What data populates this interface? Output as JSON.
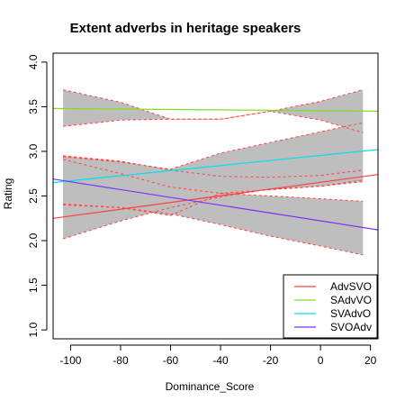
{
  "chart_data": {
    "type": "line",
    "title": "Extent adverbs in heritage speakers",
    "xlabel": "Dominance_Score",
    "ylabel": "Rating",
    "xlim": [
      -107,
      23
    ],
    "ylim": [
      0.9,
      4.1
    ],
    "x_ticks": [
      -100,
      -80,
      -60,
      -40,
      -20,
      0,
      20
    ],
    "y_ticks": [
      1.0,
      1.5,
      2.0,
      2.5,
      3.0,
      3.5,
      4.0
    ],
    "grid": false,
    "legend_position": "bottom-right",
    "series": [
      {
        "name": "AdvSVO",
        "color": "#FF4040",
        "x": [
          -107,
          23
        ],
        "y": [
          2.25,
          2.74
        ]
      },
      {
        "name": "SAdvVO",
        "color": "#80E020",
        "x": [
          -107,
          23
        ],
        "y": [
          3.48,
          3.45
        ]
      },
      {
        "name": "SVAdvO",
        "color": "#00E0E8",
        "x": [
          -107,
          23
        ],
        "y": [
          2.65,
          3.02
        ]
      },
      {
        "name": "SVOAdv",
        "color": "#7733FF",
        "x": [
          -107,
          23
        ],
        "y": [
          2.69,
          2.12
        ]
      }
    ],
    "confidence_bands": [
      {
        "x": [
          -103,
          -80,
          -60,
          -40,
          -20,
          0,
          17
        ],
        "upper": [
          3.69,
          3.55,
          3.36,
          3.36,
          3.45,
          3.56,
          3.69
        ],
        "lower": [
          3.28,
          3.35,
          3.36,
          3.36,
          3.45,
          3.35,
          3.21
        ]
      },
      {
        "x": [
          -103,
          -80,
          -60,
          -40,
          -20,
          0,
          17
        ],
        "upper": [
          2.95,
          2.89,
          2.79,
          2.72,
          2.71,
          2.73,
          2.79
        ],
        "lower": [
          2.02,
          2.22,
          2.37,
          2.49,
          2.58,
          2.61,
          2.68
        ]
      },
      {
        "x": [
          -103,
          -80,
          -60,
          -40,
          -20,
          0,
          17
        ],
        "upper": [
          2.94,
          2.88,
          2.8,
          2.98,
          3.1,
          3.22,
          3.32
        ],
        "lower": [
          2.41,
          2.37,
          2.28,
          2.53,
          2.57,
          2.61,
          2.66
        ]
      },
      {
        "x": [
          -103,
          -80,
          -60,
          -40,
          -20,
          0,
          17
        ],
        "upper": [
          2.91,
          2.75,
          2.6,
          2.53,
          2.5,
          2.47,
          2.44
        ],
        "lower": [
          2.4,
          2.37,
          2.3,
          2.18,
          2.05,
          1.94,
          1.84
        ]
      }
    ]
  },
  "colors": {
    "band_fill": "#BEBEBE",
    "band_edge": "#FF4040",
    "axis": "#000000",
    "background": "#FFFFFF"
  }
}
